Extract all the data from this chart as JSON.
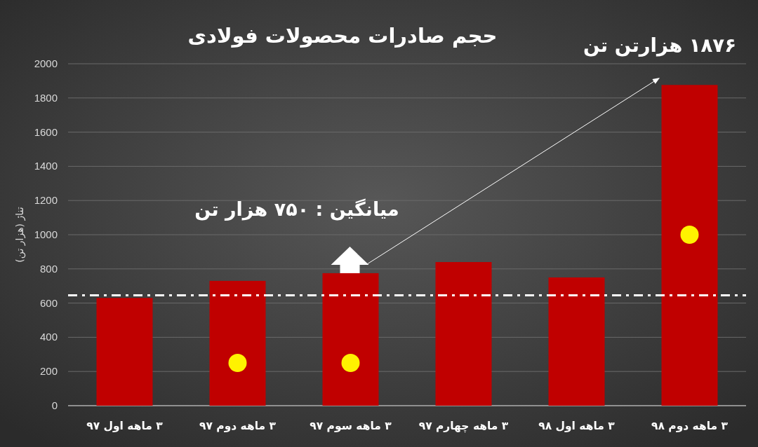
{
  "chart_data": {
    "type": "bar",
    "title": "حجم صادرات محصولات فولادی",
    "ylabel": "تناژ (هزار تن)",
    "categories": [
      "۳ ماهه اول ۹۷",
      "۳ ماهه دوم ۹۷",
      "۳ ماهه سوم ۹۷",
      "۳ ماهه چهارم ۹۷",
      "۳ ماهه اول ۹۸",
      "۳ ماهه دوم ۹۸"
    ],
    "values": [
      630,
      730,
      775,
      840,
      750,
      1876
    ],
    "color": "#c00000",
    "ylim": [
      0,
      2000
    ],
    "yticks": [
      0,
      200,
      400,
      600,
      800,
      1000,
      1200,
      1400,
      1600,
      1800,
      2000
    ],
    "grid": "y",
    "ref_lines": [
      {
        "axis": "y",
        "value": 645,
        "color": "#ffffff",
        "line_style": "dashed"
      }
    ],
    "annotations": [
      "میانگین : ۷۵۰ هزار تن",
      "۱۸۷۶ هزارتن تن"
    ]
  }
}
